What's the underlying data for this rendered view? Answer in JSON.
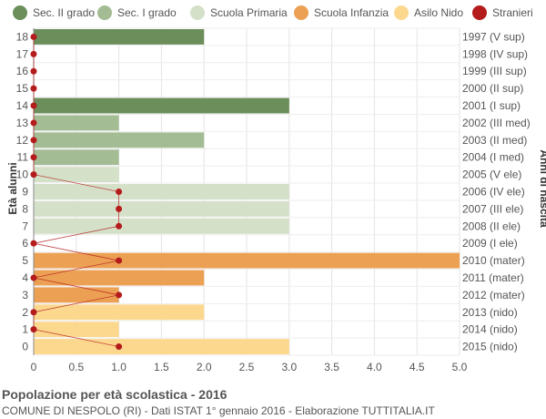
{
  "legend": [
    {
      "label": "Sec. II grado",
      "color": "#6b8e5a"
    },
    {
      "label": "Sec. I grado",
      "color": "#a3bc94"
    },
    {
      "label": "Scuola Primaria",
      "color": "#d5e0c8"
    },
    {
      "label": "Scuola Infanzia",
      "color": "#eca054"
    },
    {
      "label": "Asilo Nido",
      "color": "#fcd88f"
    },
    {
      "label": "Stranieri",
      "color": "#b41b1b"
    }
  ],
  "footer": {
    "title": "Popolazione per età scolastica - 2016",
    "subtitle": "COMUNE DI NESPOLO (RI) - Dati ISTAT 1° gennaio 2016 - Elaborazione TUTTITALIA.IT"
  },
  "chart_data": {
    "type": "bar",
    "orientation": "horizontal",
    "ylabel": "Età alunni",
    "ylabel_right": "Anni di nascita",
    "xlim": [
      0,
      5
    ],
    "x_ticks": [
      "0",
      "0.5",
      "1.0",
      "1.5",
      "2.0",
      "2.5",
      "3.0",
      "3.5",
      "4.0",
      "4.5",
      "5.0"
    ],
    "grid": true,
    "categories": [
      "18",
      "17",
      "16",
      "15",
      "14",
      "13",
      "12",
      "11",
      "10",
      "9",
      "8",
      "7",
      "6",
      "5",
      "4",
      "3",
      "2",
      "1",
      "0"
    ],
    "birth_years": [
      "1997 (V sup)",
      "1998 (IV sup)",
      "1999 (III sup)",
      "2000 (II sup)",
      "2001 (I sup)",
      "2002 (III med)",
      "2003 (II med)",
      "2004 (I med)",
      "2005 (V ele)",
      "2006 (IV ele)",
      "2007 (III ele)",
      "2008 (II ele)",
      "2009 (I ele)",
      "2010 (mater)",
      "2011 (mater)",
      "2012 (mater)",
      "2013 (nido)",
      "2014 (nido)",
      "2015 (nido)"
    ],
    "values": [
      2,
      0,
      0,
      0,
      3,
      1,
      2,
      1,
      1,
      3,
      3,
      3,
      0,
      5,
      2,
      1,
      2,
      1,
      3
    ],
    "bar_colors": [
      "#6b8e5a",
      "#6b8e5a",
      "#6b8e5a",
      "#6b8e5a",
      "#6b8e5a",
      "#a3bc94",
      "#a3bc94",
      "#a3bc94",
      "#d5e0c8",
      "#d5e0c8",
      "#d5e0c8",
      "#d5e0c8",
      "#d5e0c8",
      "#eca054",
      "#eca054",
      "#eca054",
      "#fcd88f",
      "#fcd88f",
      "#fcd88f"
    ],
    "stranieri": [
      0,
      0,
      0,
      0,
      0,
      0,
      0,
      0,
      0,
      1,
      1,
      1,
      0,
      1,
      0,
      1,
      0,
      0,
      1
    ],
    "stranieri_color": "#b41b1b"
  }
}
